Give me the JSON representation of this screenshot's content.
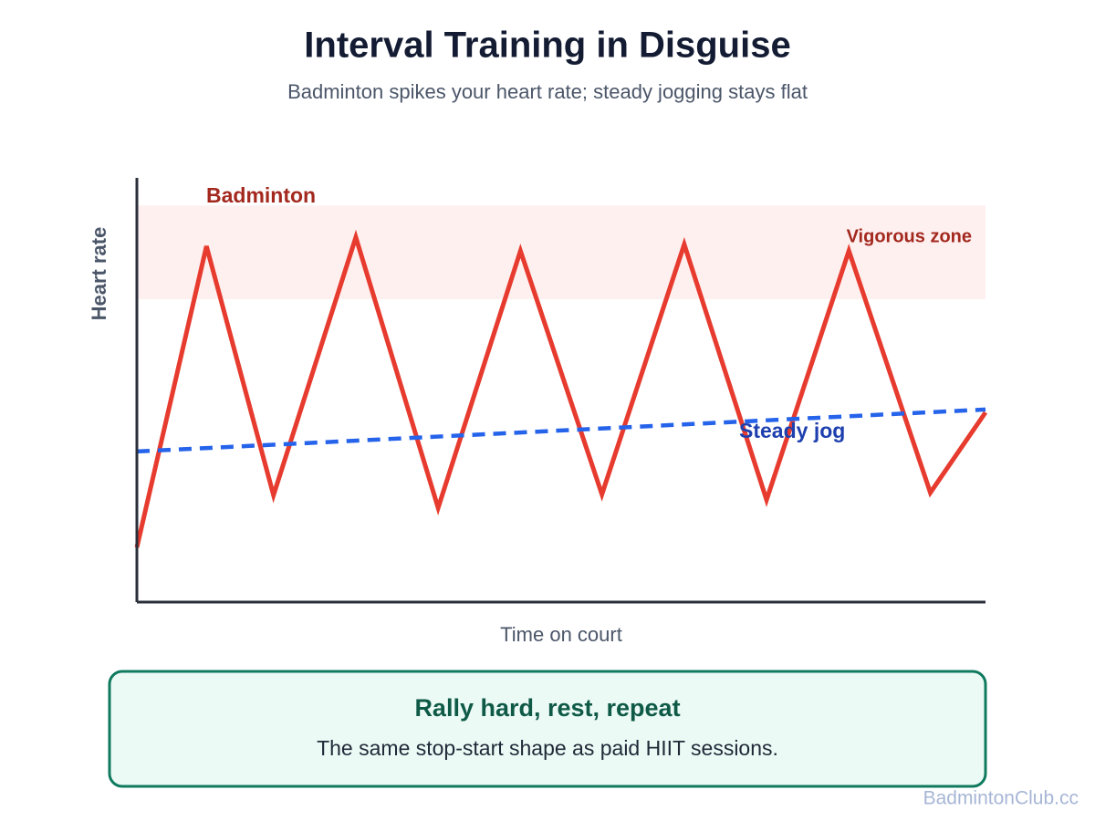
{
  "chart_data": {
    "type": "line",
    "title": "Interval Training in Disguise",
    "subtitle": "Badminton spikes your heart rate; steady jogging stays flat",
    "x_label": "Time on court",
    "y_label": "Heart rate",
    "xlim": [
      0,
      100
    ],
    "ylim": [
      0,
      100
    ],
    "bands": [
      {
        "label": "Vigorous zone",
        "range": [
          71.4,
          93.5
        ],
        "color": "#fff0f0",
        "label_color": "#a3281e"
      }
    ],
    "series": [
      {
        "name": "Badminton",
        "color": "#e63b2e",
        "label_color": "#a3281e",
        "dashed": false,
        "x": [
          0,
          8.2,
          16.1,
          25.8,
          35.5,
          45.2,
          54.8,
          64.5,
          74.2,
          83.9,
          93.5,
          100
        ],
        "values": [
          12.9,
          83.9,
          25.2,
          86.0,
          22.2,
          82.8,
          25.4,
          84.3,
          24.1,
          82.8,
          25.8,
          44.7
        ]
      },
      {
        "name": "Steady jog",
        "color": "#2563eb",
        "label_color": "#1e40af",
        "dashed": true,
        "x": [
          0,
          100
        ],
        "values": [
          35.5,
          45.4
        ]
      }
    ]
  },
  "callout": {
    "title": "Rally hard, rest, repeat",
    "text": "The same stop-start shape as paid HIIT sessions."
  },
  "footer": {
    "watermark": "BadmintonClub.cc"
  }
}
